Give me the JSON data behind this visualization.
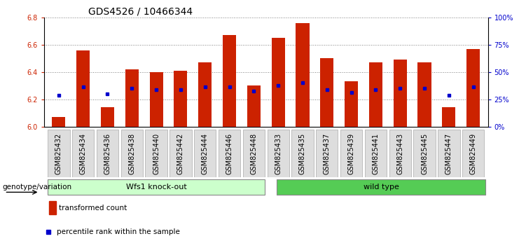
{
  "title": "GDS4526 / 10466344",
  "samples": [
    "GSM825432",
    "GSM825434",
    "GSM825436",
    "GSM825438",
    "GSM825440",
    "GSM825442",
    "GSM825444",
    "GSM825446",
    "GSM825448",
    "GSM825433",
    "GSM825435",
    "GSM825437",
    "GSM825439",
    "GSM825441",
    "GSM825443",
    "GSM825445",
    "GSM825447",
    "GSM825449"
  ],
  "bar_values": [
    6.07,
    6.56,
    6.14,
    6.42,
    6.4,
    6.41,
    6.47,
    6.67,
    6.3,
    6.65,
    6.76,
    6.5,
    6.33,
    6.47,
    6.49,
    6.47,
    6.14,
    6.57
  ],
  "percentile_values": [
    6.23,
    6.29,
    6.24,
    6.28,
    6.27,
    6.27,
    6.29,
    6.29,
    6.26,
    6.3,
    6.32,
    6.27,
    6.25,
    6.27,
    6.28,
    6.28,
    6.23,
    6.29
  ],
  "ylim_left": [
    6.0,
    6.8
  ],
  "ylim_right": [
    0,
    100
  ],
  "yticks_left": [
    6.0,
    6.2,
    6.4,
    6.6,
    6.8
  ],
  "yticks_right": [
    0,
    25,
    50,
    75,
    100
  ],
  "ytick_labels_right": [
    "0%",
    "25%",
    "50%",
    "75%",
    "100%"
  ],
  "group1_label": "Wfs1 knock-out",
  "group2_label": "wild type",
  "group1_count": 9,
  "group2_count": 9,
  "bar_color": "#cc2200",
  "dot_color": "#0000cc",
  "group1_bg": "#ccffcc",
  "group2_bg": "#55cc55",
  "tick_bg": "#dddddd",
  "xlabel_left": "genotype/variation",
  "legend_transformed": "transformed count",
  "legend_percentile": "percentile rank within the sample",
  "title_fontsize": 10,
  "tick_fontsize": 7
}
